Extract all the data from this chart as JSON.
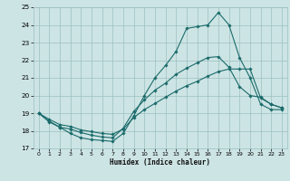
{
  "xlabel": "Humidex (Indice chaleur)",
  "xlim": [
    -0.5,
    23.5
  ],
  "ylim": [
    17,
    25
  ],
  "yticks": [
    17,
    18,
    19,
    20,
    21,
    22,
    23,
    24,
    25
  ],
  "xticks": [
    0,
    1,
    2,
    3,
    4,
    5,
    6,
    7,
    8,
    9,
    10,
    11,
    12,
    13,
    14,
    15,
    16,
    17,
    18,
    19,
    20,
    21,
    22,
    23
  ],
  "bg_color": "#cde4e4",
  "grid_color": "#9bbfbf",
  "line_color": "#1a6b6b",
  "line1_y": [
    19.0,
    18.5,
    18.2,
    17.85,
    17.6,
    17.5,
    17.45,
    17.4,
    17.85,
    18.85,
    20.0,
    21.0,
    21.7,
    22.5,
    23.8,
    23.9,
    24.0,
    24.7,
    24.0,
    22.15,
    21.0,
    19.5,
    19.2,
    19.2
  ],
  "line2_y": [
    19.0,
    18.55,
    18.2,
    18.1,
    17.9,
    17.75,
    17.65,
    17.6,
    18.15,
    19.1,
    19.75,
    20.3,
    20.7,
    21.2,
    21.55,
    21.85,
    22.15,
    22.2,
    21.6,
    20.5,
    20.0,
    19.9,
    19.5,
    19.3
  ],
  "line3_y": [
    19.0,
    18.65,
    18.35,
    18.25,
    18.05,
    17.95,
    17.85,
    17.8,
    18.1,
    18.75,
    19.2,
    19.55,
    19.9,
    20.25,
    20.55,
    20.8,
    21.1,
    21.35,
    21.5,
    21.5,
    21.5,
    19.85,
    19.5,
    19.3
  ]
}
